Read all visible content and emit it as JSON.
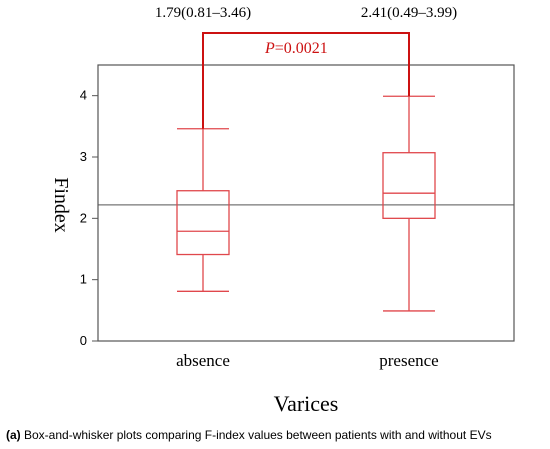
{
  "chart_data": {
    "type": "box",
    "title": "",
    "xlabel": "Varices",
    "ylabel": "Findex",
    "ylim": [
      0,
      4.5
    ],
    "yticks": [
      "0",
      "1",
      "2",
      "3",
      "4"
    ],
    "reference_line": 2.22,
    "categories": [
      "absence",
      "presence"
    ],
    "boxes": [
      {
        "category": "absence",
        "min": 0.81,
        "q1": 1.41,
        "median": 1.79,
        "q3": 2.45,
        "max": 3.46,
        "annotation": "1.79(0.81–3.46)"
      },
      {
        "category": "presence",
        "min": 0.49,
        "q1": 2.0,
        "median": 2.41,
        "q3": 3.07,
        "max": 3.99,
        "annotation": "2.41(0.49–3.99)"
      }
    ],
    "significance": {
      "p_label": "P",
      "p_text": "=0.0021"
    },
    "colors": {
      "box": "#e0474c",
      "bracket": "#cc1111",
      "frame": "#555555",
      "refline": "#777777"
    }
  },
  "caption": {
    "label": "(a)",
    "text": " Box-and-whisker plots comparing F-index values between patients with and without EVs"
  }
}
